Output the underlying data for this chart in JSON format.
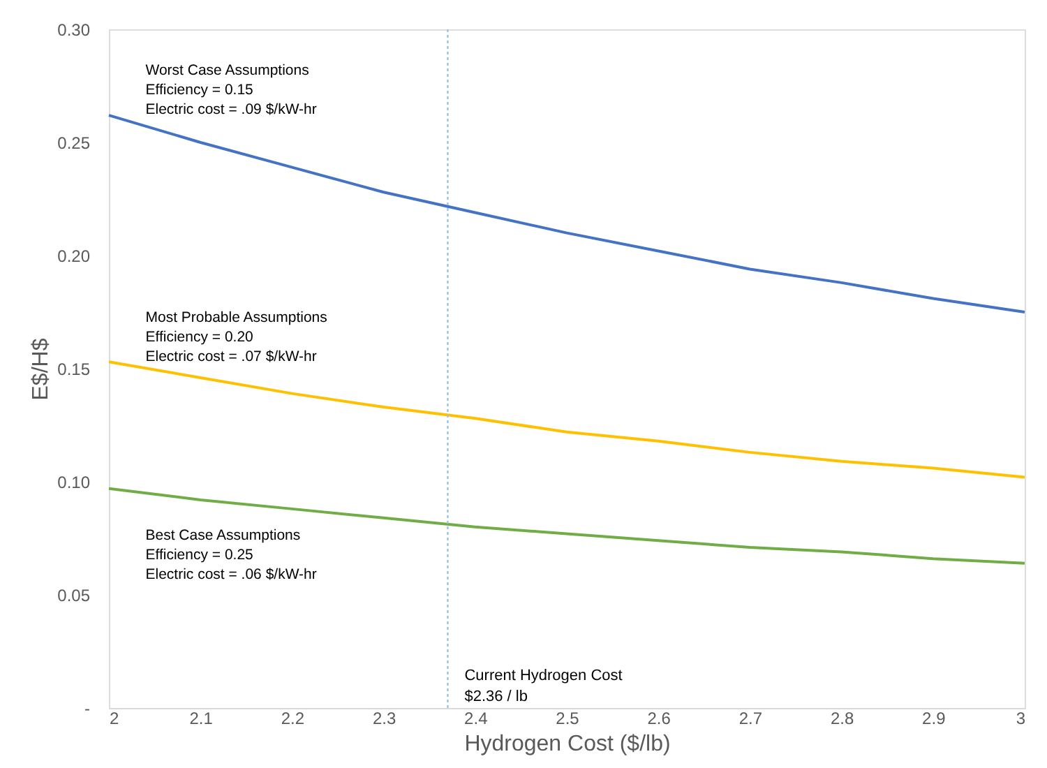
{
  "chart_data": {
    "type": "line",
    "xlabel": "Hydrogen Cost ($/lb)",
    "ylabel": "E$/H$",
    "x": [
      2,
      2.1,
      2.2,
      2.3,
      2.4,
      2.5,
      2.6,
      2.7,
      2.8,
      2.9,
      3
    ],
    "series": [
      {
        "color": "#4472c4",
        "values": [
          0.262,
          0.25,
          0.239,
          0.228,
          0.219,
          0.21,
          0.202,
          0.194,
          0.188,
          0.181,
          0.175
        ]
      },
      {
        "color": "#ffc000",
        "values": [
          0.153,
          0.146,
          0.139,
          0.133,
          0.128,
          0.122,
          0.118,
          0.113,
          0.109,
          0.106,
          0.102
        ]
      },
      {
        "color": "#70ad47",
        "values": [
          0.097,
          0.092,
          0.088,
          0.084,
          0.08,
          0.077,
          0.074,
          0.071,
          0.069,
          0.066,
          0.064
        ]
      }
    ],
    "xlim": [
      2,
      3
    ],
    "xticks": [
      2,
      2.1,
      2.2,
      2.3,
      2.4,
      2.5,
      2.6,
      2.7,
      2.8,
      2.9,
      3
    ],
    "ylim": [
      0,
      0.3
    ],
    "yticks": [
      {
        "value": 0,
        "label": "-"
      },
      {
        "value": 0.05,
        "label": "0.05"
      },
      {
        "value": 0.1,
        "label": "0.10"
      },
      {
        "value": 0.15,
        "label": "0.15"
      },
      {
        "value": 0.2,
        "label": "0.20"
      },
      {
        "value": 0.25,
        "label": "0.25"
      },
      {
        "value": 0.3,
        "label": "0.30"
      }
    ],
    "grid": false,
    "marker": "none",
    "line_style": "solid",
    "ref_lines": [
      {
        "axis": "x",
        "value": 2.37,
        "label": "Current Hydrogen Cost\n$2.36 / lb",
        "color": "#9dc3e6",
        "line_style": "dotted"
      }
    ],
    "annotations": [
      "Worst Case Assumptions\nEfficiency = 0.15\nElectric cost = .09 $/kW-hr",
      "Most Probable Assumptions\nEfficiency = 0.20\nElectric cost = .07 $/kW-hr",
      "Best Case Assumptions\nEfficiency = 0.25\nElectric cost = .06 $/kW-hr"
    ]
  }
}
